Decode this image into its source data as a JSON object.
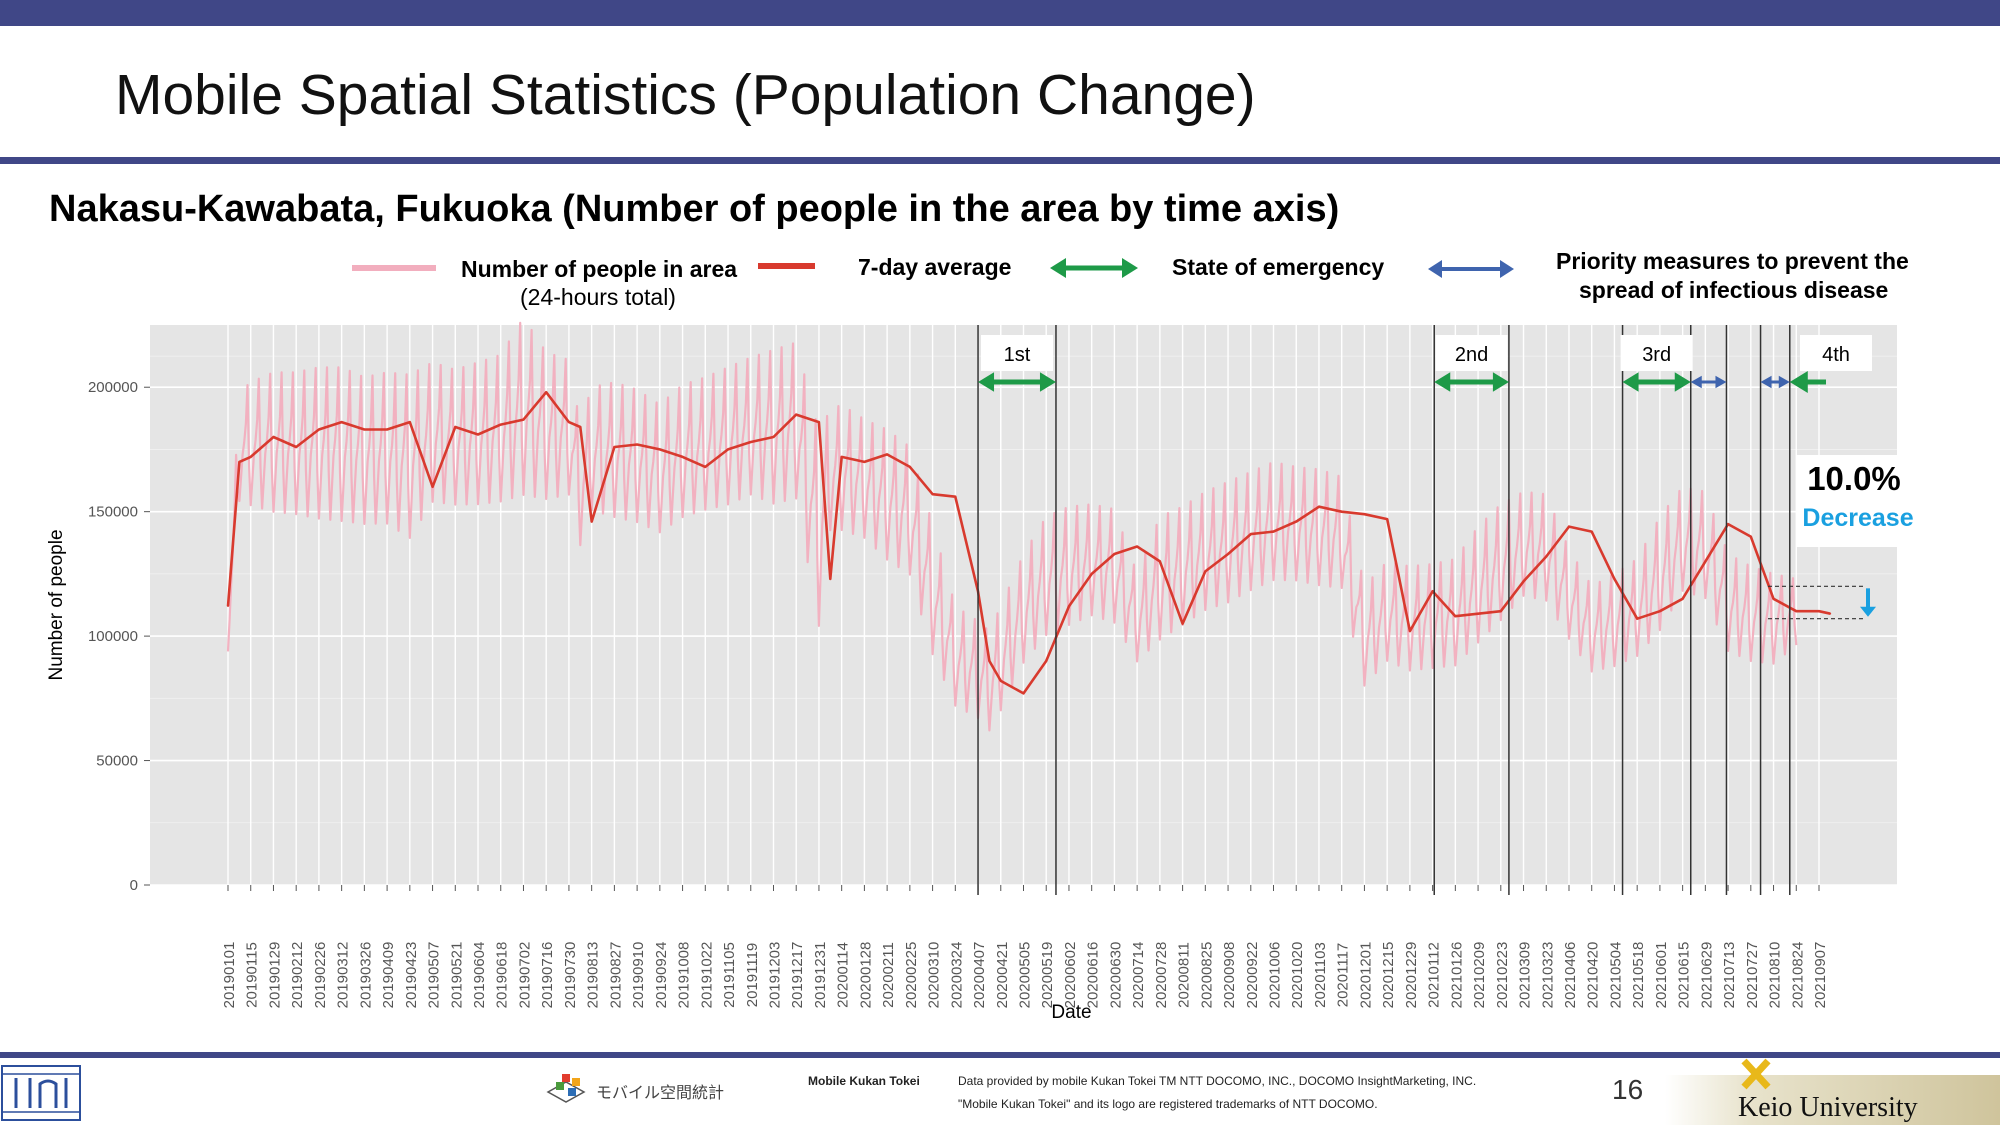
{
  "slide": {
    "title": "Mobile Spatial Statistics (Population Change)",
    "subtitle": "Nakasu-Kawabata, Fukuoka (Number of people in the area by time axis)",
    "page_number": "16",
    "colors": {
      "bar": "#404787",
      "daily": "#f2aebe",
      "avg": "#d83a2e",
      "emergency": "#1e9a48",
      "priority": "#3f64ae",
      "decrease": "#1aa0e0"
    }
  },
  "legend": {
    "daily_label": "Number of people in area",
    "daily_sub": "(24-hours total)",
    "avg_label": "7-day average",
    "emergency_label": "State of emergency",
    "priority_label_1": "Priority measures to prevent the",
    "priority_label_2": "spread of infectious disease"
  },
  "footer": {
    "brand": "Mobile Kukan Tokei",
    "logo_text": "モバイル空間統計",
    "note_1": "Data provided by mobile Kukan Tokei TM NTT DOCOMO, INC., DOCOMO InsightMarketing, INC.",
    "note_2": "\"Mobile Kukan Tokei\" and its logo are registered trademarks of NTT DOCOMO.",
    "university": "Keio University"
  },
  "chart_data": {
    "type": "line",
    "xlabel": "Date",
    "ylabel": "Number of people",
    "ylim": [
      0,
      225000
    ],
    "yticks": [
      0,
      50000,
      100000,
      150000,
      200000
    ],
    "ytick_labels": [
      "0",
      "50000",
      "100000",
      "150000",
      "200000"
    ],
    "grid": true,
    "x_ticks": [
      "20190101",
      "20190115",
      "20190129",
      "20190212",
      "20190226",
      "20190312",
      "20190326",
      "20190409",
      "20190423",
      "20190507",
      "20190521",
      "20190604",
      "20190618",
      "20190702",
      "20190716",
      "20190730",
      "20190813",
      "20190827",
      "20190910",
      "20190924",
      "20191008",
      "20191022",
      "20191105",
      "20191119",
      "20191203",
      "20191217",
      "20191231",
      "20200114",
      "20200128",
      "20200211",
      "20200225",
      "20200310",
      "20200324",
      "20200407",
      "20200421",
      "20200505",
      "20200519",
      "20200602",
      "20200616",
      "20200630",
      "20200714",
      "20200728",
      "20200811",
      "20200825",
      "20200908",
      "20200922",
      "20201006",
      "20201020",
      "20201103",
      "20201117",
      "20201201",
      "20201215",
      "20201229",
      "20210112",
      "20210126",
      "20210209",
      "20210223",
      "20210309",
      "20210323",
      "20210406",
      "20210420",
      "20210504",
      "20210518",
      "20210601",
      "20210615",
      "20210629",
      "20210713",
      "20210727",
      "20210810",
      "20210824",
      "20210907"
    ],
    "series": [
      {
        "name": "7-day average",
        "x": [
          "20190101",
          "20190108",
          "20190115",
          "20190129",
          "20190212",
          "20190226",
          "20190312",
          "20190326",
          "20190409",
          "20190423",
          "20190507",
          "20190521",
          "20190604",
          "20190618",
          "20190702",
          "20190716",
          "20190730",
          "20190806",
          "20190813",
          "20190827",
          "20190910",
          "20190924",
          "20191008",
          "20191022",
          "20191105",
          "20191119",
          "20191203",
          "20191217",
          "20191231",
          "20200107",
          "20200114",
          "20200128",
          "20200211",
          "20200225",
          "20200310",
          "20200324",
          "20200407",
          "20200414",
          "20200421",
          "20200505",
          "20200519",
          "20200602",
          "20200616",
          "20200630",
          "20200714",
          "20200728",
          "20200811",
          "20200825",
          "20200908",
          "20200922",
          "20201006",
          "20201020",
          "20201103",
          "20201117",
          "20201201",
          "20201215",
          "20201229",
          "20210112",
          "20210126",
          "20210209",
          "20210223",
          "20210309",
          "20210323",
          "20210406",
          "20210420",
          "20210504",
          "20210518",
          "20210601",
          "20210615",
          "20210629",
          "20210713",
          "20210727",
          "20210810",
          "20210824",
          "20210907",
          "20210914"
        ],
        "values": [
          112000,
          170000,
          172000,
          180000,
          176000,
          183000,
          186000,
          183000,
          183000,
          186000,
          160000,
          184000,
          181000,
          185000,
          187000,
          198000,
          186000,
          184000,
          146000,
          176000,
          177000,
          175000,
          172000,
          168000,
          175000,
          178000,
          180000,
          189000,
          186000,
          123000,
          172000,
          170000,
          173000,
          168000,
          157000,
          156000,
          118000,
          90000,
          82000,
          77000,
          90000,
          112000,
          125000,
          133000,
          136000,
          130000,
          105000,
          126000,
          133000,
          141000,
          142000,
          146000,
          152000,
          150000,
          149000,
          147000,
          102000,
          118000,
          108000,
          109000,
          110000,
          122000,
          132000,
          144000,
          142000,
          123000,
          107000,
          110000,
          115000,
          130000,
          145000,
          140000,
          115000,
          110000,
          110000,
          109000
        ]
      },
      {
        "name": "Number of people in area",
        "low": [
          93000,
          152000,
          150000,
          147000,
          146000,
          144000,
          143000,
          142000,
          142000,
          136000,
          151000,
          150000,
          150000,
          151000,
          153000,
          152000,
          154000,
          134000,
          148000,
          145000,
          143000,
          139000,
          145000,
          148000,
          150000,
          154000,
          150000,
          152000,
          100000,
          140000,
          140000,
          137000,
          128000,
          122000,
          90000,
          70000,
          65000,
          60000,
          68000,
          87000,
          98000,
          102000,
          106000,
          103000,
          88000,
          96000,
          102000,
          108000,
          111000,
          116000,
          120000,
          120000,
          118000,
          117000,
          78000,
          88000,
          84000,
          85000,
          86000,
          95000,
          104000,
          114000,
          112000,
          97000,
          84000,
          86000,
          90000,
          100000,
          116000,
          113000,
          92000,
          88000,
          87000,
          95000
        ],
        "high": [
          110000,
          198000,
          202000,
          206000,
          206000,
          208000,
          208000,
          204000,
          206000,
          205000,
          210000,
          207000,
          210000,
          213000,
          228000,
          214000,
          211000,
          185000,
          200000,
          202000,
          199000,
          193000,
          201000,
          204000,
          208000,
          212000,
          215000,
          218000,
          182000,
          191000,
          193000,
          187000,
          183000,
          176000,
          145000,
          112000,
          106000,
          102000,
          112000,
          133000,
          148000,
          152000,
          153000,
          151000,
          125000,
          148000,
          152000,
          158000,
          162000,
          166000,
          170000,
          168000,
          167000,
          164000,
          120000,
          130000,
          128000,
          129000,
          131000,
          144000,
          153000,
          158000,
          157000,
          135000,
          120000,
          125000,
          131000,
          148000,
          160000,
          158000,
          133000,
          128000,
          125000,
          123000
        ]
      }
    ],
    "vertical_lines": [
      "20200407",
      "20200525",
      "20210113",
      "20210228",
      "20210509",
      "20210620",
      "20210712",
      "20210802",
      "20210820"
    ],
    "periods": [
      {
        "label": "1st",
        "type": "emergency",
        "start": "20200407",
        "end": "20200525"
      },
      {
        "label": "2nd",
        "type": "emergency",
        "start": "20210113",
        "end": "20210228"
      },
      {
        "label": "3rd",
        "type": "emergency",
        "start": "20210509",
        "end": "20210620"
      },
      {
        "type": "priority",
        "start": "20210620",
        "end": "20210712"
      },
      {
        "type": "priority",
        "start": "20210802",
        "end": "20210820"
      },
      {
        "label": "4th",
        "type": "emergency",
        "start": "20210820",
        "end": "20210930"
      }
    ],
    "annotation": {
      "percent": "10.0%",
      "text": "Decrease",
      "from": 120000,
      "to": 107000
    }
  }
}
